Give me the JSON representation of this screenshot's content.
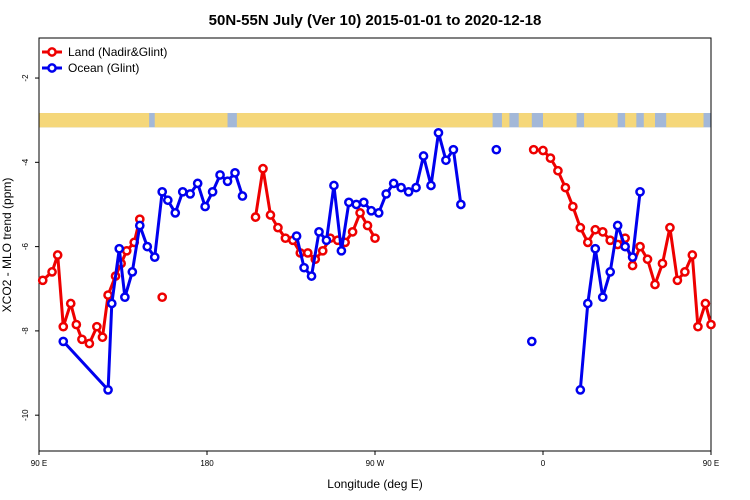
{
  "chart_data": {
    "type": "line",
    "title": "50N-55N July (Ver 10)   2015-01-01 to 2020-12-18",
    "xlabel": "Longitude (deg E)",
    "ylabel": "XCO2 - MLO trend (ppm)",
    "xlim": [
      90,
      450
    ],
    "ylim": [
      -10.85,
      -1.05
    ],
    "x_ticks": [
      {
        "value": 90,
        "label": "90 E"
      },
      {
        "value": 180,
        "label": "180"
      },
      {
        "value": 270,
        "label": "90 W"
      },
      {
        "value": 360,
        "label": "0"
      },
      {
        "value": 450,
        "label": "90 E"
      },
      {
        "value": 540,
        "label": "180"
      }
    ],
    "y_ticks": [
      {
        "value": -2,
        "label": "-2"
      },
      {
        "value": -4,
        "label": "-4"
      },
      {
        "value": -6,
        "label": "-6"
      },
      {
        "value": -8,
        "label": "-8"
      },
      {
        "value": -10,
        "label": "-10"
      }
    ],
    "legend_position": "top-left",
    "grid": false,
    "land_ocean_strip": {
      "y_range": [
        -3.17,
        -2.83
      ],
      "land_color": "#f5d77a",
      "ocean_color": "#a3b8d8"
    },
    "series": [
      {
        "name": "Land (Nadir&Glint)",
        "color": "#ee0000",
        "segments": [
          [
            [
              92,
              -6.8
            ],
            [
              97,
              -6.6
            ],
            [
              100,
              -6.2
            ],
            [
              103,
              -7.9
            ],
            [
              107,
              -7.35
            ],
            [
              110,
              -7.85
            ],
            [
              113,
              -8.2
            ],
            [
              117,
              -8.3
            ],
            [
              121,
              -7.9
            ],
            [
              124,
              -8.15
            ],
            [
              127,
              -7.15
            ],
            [
              131,
              -6.7
            ],
            [
              134,
              -6.4
            ],
            [
              137,
              -6.1
            ],
            [
              141,
              -5.9
            ],
            [
              144,
              -5.35
            ]
          ],
          [
            [
              206,
              -5.3
            ],
            [
              210,
              -4.15
            ],
            [
              214,
              -5.25
            ],
            [
              218,
              -5.55
            ],
            [
              222,
              -5.8
            ],
            [
              226,
              -5.85
            ],
            [
              230,
              -6.15
            ],
            [
              234,
              -6.15
            ],
            [
              238,
              -6.3
            ],
            [
              242,
              -6.1
            ],
            [
              246,
              -5.8
            ],
            [
              250,
              -5.85
            ],
            [
              254,
              -5.9
            ],
            [
              258,
              -5.65
            ],
            [
              262,
              -5.2
            ],
            [
              266,
              -5.5
            ],
            [
              270,
              -5.8
            ]
          ],
          [
            [
              355,
              -3.7
            ],
            [
              360,
              -3.72
            ],
            [
              364,
              -3.9
            ],
            [
              368,
              -4.2
            ],
            [
              372,
              -4.6
            ],
            [
              376,
              -5.05
            ],
            [
              380,
              -5.55
            ],
            [
              384,
              -5.9
            ],
            [
              388,
              -5.6
            ],
            [
              392,
              -5.65
            ],
            [
              396,
              -5.85
            ],
            [
              400,
              -5.95
            ],
            [
              404,
              -5.8
            ],
            [
              408,
              -6.45
            ],
            [
              412,
              -6.0
            ],
            [
              416,
              -6.3
            ],
            [
              420,
              -6.9
            ],
            [
              424,
              -6.4
            ],
            [
              428,
              -5.55
            ],
            [
              432,
              -6.8
            ],
            [
              436,
              -6.6
            ],
            [
              440,
              -6.2
            ],
            [
              443,
              -7.9
            ],
            [
              447,
              -7.35
            ],
            [
              450,
              -7.85
            ]
          ],
          [
            [
              156,
              -7.2
            ]
          ]
        ]
      },
      {
        "name": "Ocean (Glint)",
        "color": "#0000ee",
        "segments": [
          [
            [
              103,
              -8.25
            ],
            [
              127,
              -9.4
            ],
            [
              129,
              -7.35
            ],
            [
              133,
              -6.05
            ],
            [
              136,
              -7.2
            ],
            [
              140,
              -6.6
            ],
            [
              144,
              -5.5
            ],
            [
              148,
              -6.0
            ],
            [
              152,
              -6.25
            ],
            [
              156,
              -4.7
            ],
            [
              159,
              -4.9
            ],
            [
              163,
              -5.2
            ],
            [
              167,
              -4.7
            ],
            [
              171,
              -4.75
            ],
            [
              175,
              -4.5
            ],
            [
              179,
              -5.05
            ],
            [
              183,
              -4.7
            ],
            [
              187,
              -4.3
            ],
            [
              191,
              -4.45
            ],
            [
              195,
              -4.25
            ],
            [
              199,
              -4.8
            ]
          ],
          [
            [
              228,
              -5.75
            ],
            [
              232,
              -6.5
            ],
            [
              236,
              -6.7
            ],
            [
              240,
              -5.65
            ],
            [
              244,
              -5.85
            ],
            [
              248,
              -4.55
            ],
            [
              252,
              -6.1
            ],
            [
              256,
              -4.95
            ],
            [
              260,
              -5.0
            ],
            [
              264,
              -4.95
            ],
            [
              268,
              -5.15
            ],
            [
              272,
              -5.2
            ],
            [
              276,
              -4.75
            ],
            [
              280,
              -4.5
            ],
            [
              284,
              -4.6
            ],
            [
              288,
              -4.7
            ],
            [
              292,
              -4.6
            ],
            [
              296,
              -3.85
            ],
            [
              300,
              -4.55
            ],
            [
              304,
              -3.3
            ],
            [
              308,
              -3.95
            ],
            [
              312,
              -3.7
            ],
            [
              316,
              -5.0
            ]
          ],
          [
            [
              380,
              -9.4
            ],
            [
              384,
              -7.35
            ],
            [
              388,
              -6.05
            ],
            [
              392,
              -7.2
            ],
            [
              396,
              -6.6
            ],
            [
              400,
              -5.5
            ],
            [
              404,
              -6.0
            ],
            [
              408,
              -6.25
            ],
            [
              412,
              -4.7
            ]
          ],
          [
            [
              335,
              -3.7
            ]
          ],
          [
            [
              354,
              -8.25
            ]
          ]
        ]
      }
    ]
  }
}
